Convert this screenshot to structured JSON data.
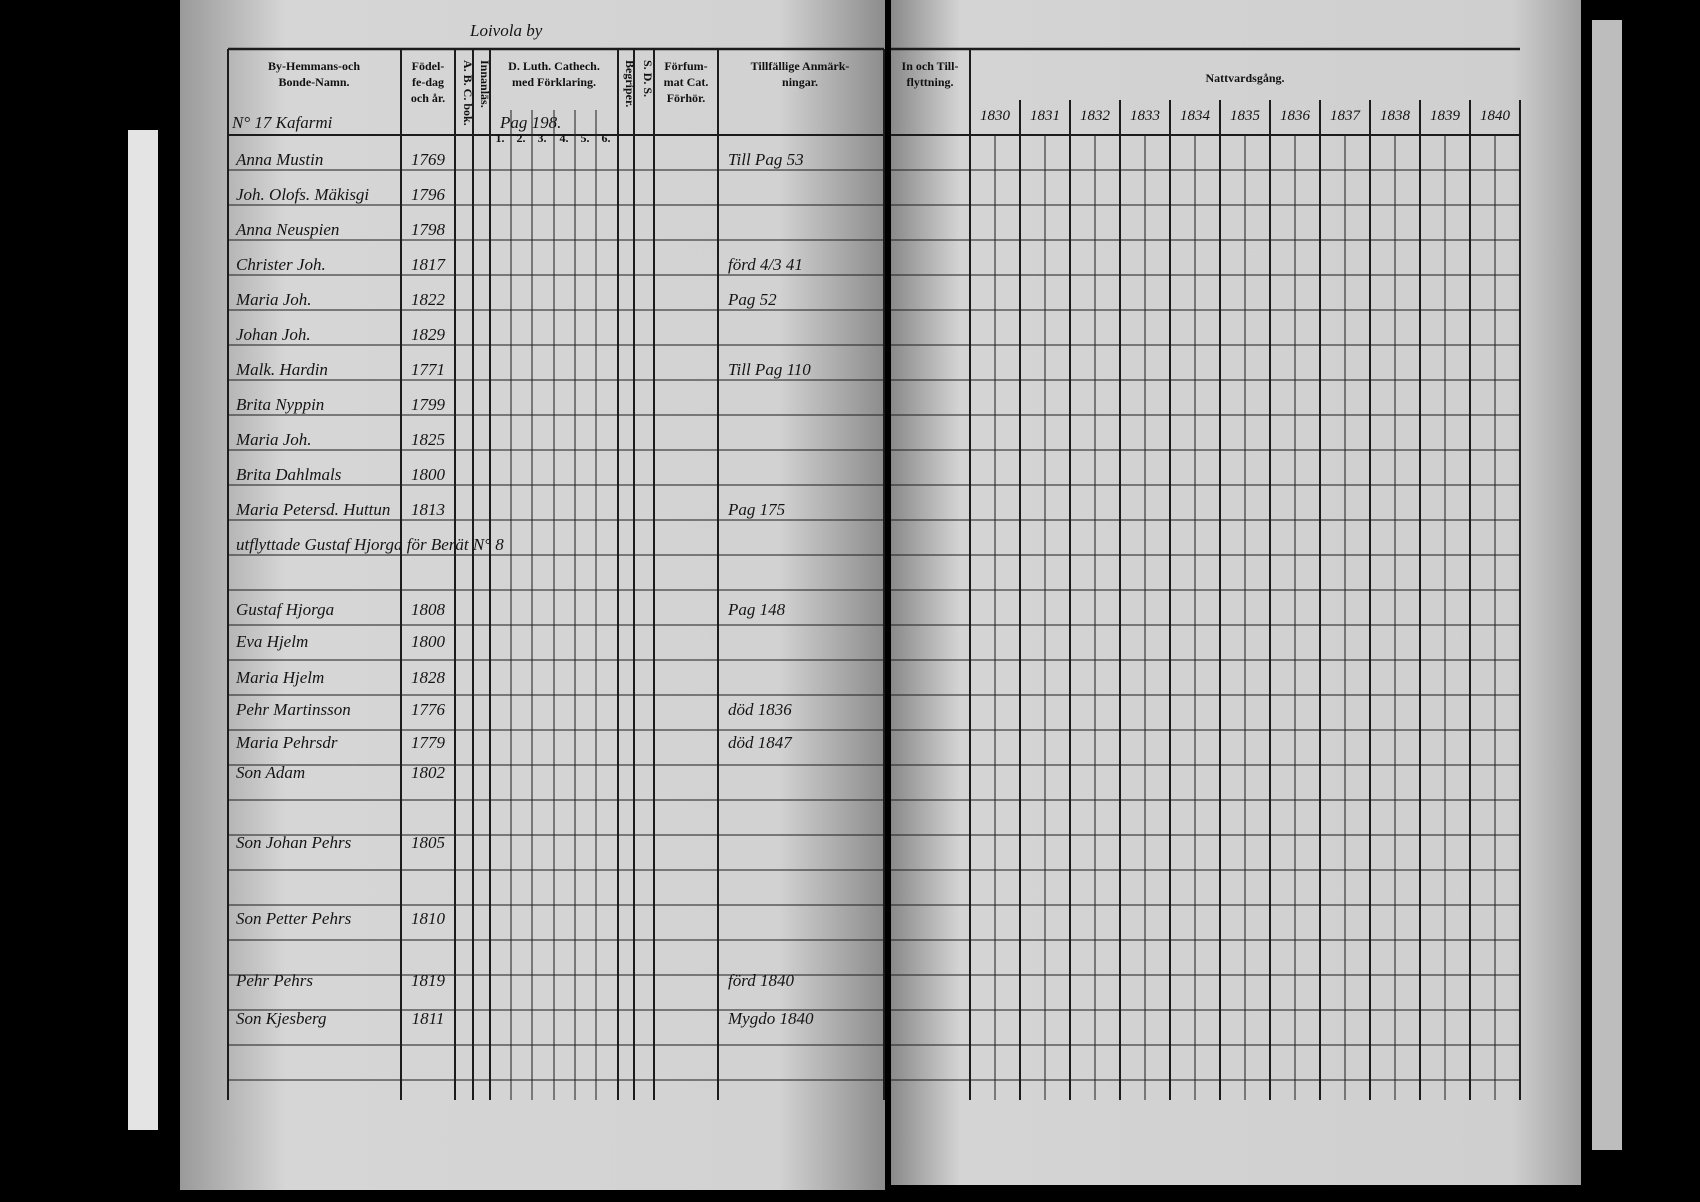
{
  "header": {
    "parish": "Loivola by",
    "left_columns": [
      [
        "By-Hemmans-och",
        "Bonde-Namn."
      ],
      [
        "Födel-",
        "fe-dag",
        "och år."
      ],
      [
        "A. B. C. bok."
      ],
      [
        "Innanläs."
      ],
      [
        "D. Luth. Cathech.",
        "med Förklaring."
      ],
      [
        "Begriper."
      ],
      [
        "S. D. S."
      ],
      [
        "Förfum-",
        "mat Cat.",
        "Förhör."
      ],
      [
        "Tillfällige Anmärk-",
        "ningar."
      ]
    ],
    "moving": [
      "In och Till-",
      "flyttning."
    ],
    "communion": "Nattvardsgång.",
    "page_ref": "Pag 198.",
    "catechism_parts": [
      "1.",
      "2.",
      "3.",
      "4.",
      "5.",
      "6."
    ],
    "years": [
      "1830",
      "1831",
      "1832",
      "1833",
      "1834",
      "1835",
      "1836",
      "1837",
      "1838",
      "1839",
      "1840"
    ]
  },
  "farm": "N° 17 Kafarmi",
  "rows": [
    {
      "name": "Anna Mustin",
      "born": "1769",
      "note": "Till Pag 53"
    },
    {
      "name": "Joh. Olofs. Mäkisgi",
      "born": "1796"
    },
    {
      "name": "Anna Neuspien",
      "born": "1798"
    },
    {
      "name": "Christer Joh.",
      "born": "1817",
      "note": "förd 4/3 41"
    },
    {
      "name": "Maria Joh.",
      "born": "1822",
      "note": "Pag 52"
    },
    {
      "name": "Johan Joh.",
      "born": "1829"
    },
    {
      "name": "Malk. Hardin",
      "born": "1771",
      "note": "Till Pag 110"
    },
    {
      "name": "Brita Nyppin",
      "born": "1799"
    },
    {
      "name": "Maria Joh.",
      "born": "1825"
    },
    {
      "name": "Brita Dahlmals",
      "born": "1800"
    },
    {
      "name": "Maria Petersd. Huttun",
      "born": "1813",
      "note": "Pag 175"
    },
    {
      "name": "utflyttade Gustaf Hjorga för Berät N° 8"
    },
    {
      "name": "Gustaf Hjorga",
      "born": "1808",
      "note": "Pag 148"
    },
    {
      "name": "Eva Hjelm",
      "born": "1800"
    },
    {
      "name": "Maria Hjelm",
      "born": "1828"
    },
    {
      "name": "Pehr Martinsson",
      "born": "1776",
      "note": "död 1836"
    },
    {
      "name": "Maria Pehrsdr",
      "born": "1779",
      "note": "död 1847"
    },
    {
      "name": "Son Adam",
      "born": "1802"
    },
    {
      "name": "Son Johan Pehrs",
      "born": "1805"
    },
    {
      "name": "Son Petter Pehrs",
      "born": "1810"
    },
    {
      "name": "Pehr Pehrs",
      "born": "1819",
      "note": "förd 1840"
    },
    {
      "name": "Son Kjesberg",
      "born": "1811",
      "note": "Mygdo 1840"
    }
  ]
}
